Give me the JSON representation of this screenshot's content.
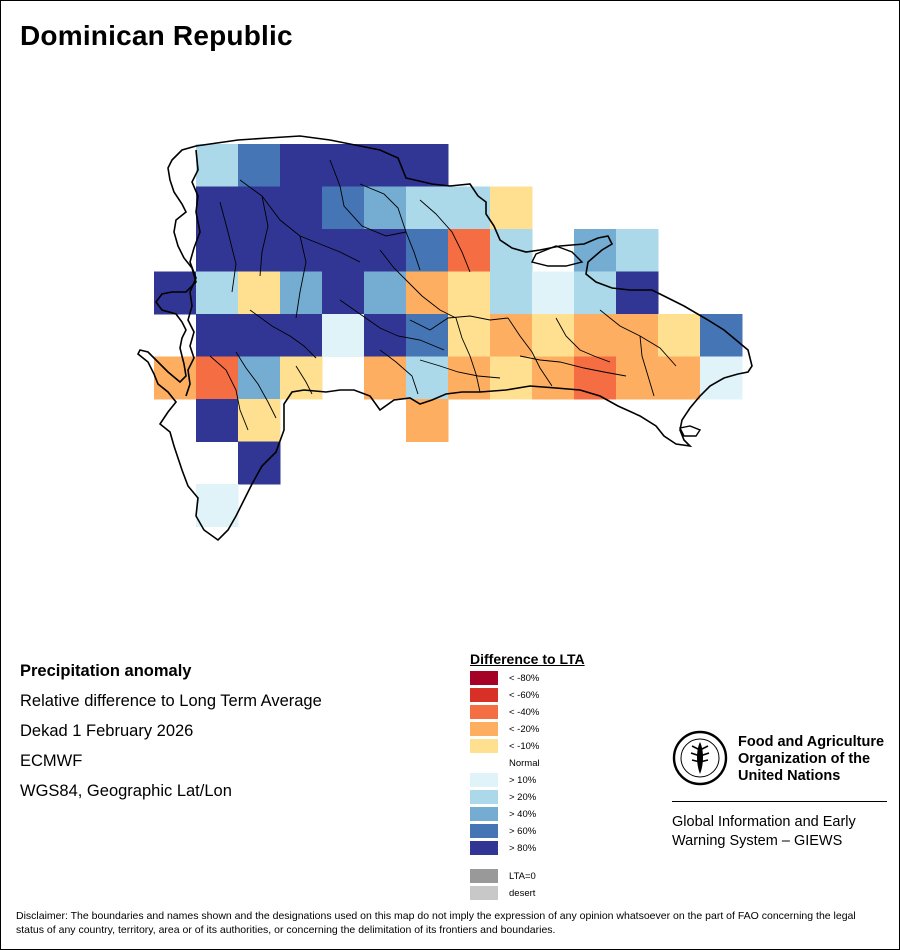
{
  "map": {
    "title": "Dominican Republic",
    "region": "Dominican Republic",
    "cell_value_codes": "1:> 80%, 2:> 60%, 3:> 40%, 4:> 20%, 5:> 10%, 6:< -10%, 7:< -20%, 8:< -40%",
    "grid": {
      "columns": [
        -72.0,
        -71.75,
        -71.5,
        -71.25,
        -71.0,
        -70.75,
        -70.5,
        -70.25,
        -70.0,
        -69.75,
        -69.5,
        -69.25,
        -69.0,
        -68.75
      ],
      "rows": [
        19.95,
        19.7,
        19.45,
        19.2,
        18.95,
        18.7,
        18.45,
        18.2,
        17.95,
        17.7
      ],
      "cells": [
        {
          "lat": 19.95,
          "lon": -71.75,
          "value": 4
        },
        {
          "lat": 19.95,
          "lon": -71.5,
          "value": 2
        },
        {
          "lat": 19.95,
          "lon": -71.25,
          "value": 1
        },
        {
          "lat": 19.95,
          "lon": -71.0,
          "value": 1
        },
        {
          "lat": 19.95,
          "lon": -70.75,
          "value": 1
        },
        {
          "lat": 19.95,
          "lon": -70.5,
          "value": 1
        },
        {
          "lat": 19.7,
          "lon": -71.75,
          "value": 1
        },
        {
          "lat": 19.7,
          "lon": -71.5,
          "value": 1
        },
        {
          "lat": 19.7,
          "lon": -71.25,
          "value": 1
        },
        {
          "lat": 19.7,
          "lon": -71.0,
          "value": 2
        },
        {
          "lat": 19.7,
          "lon": -70.75,
          "value": 3
        },
        {
          "lat": 19.7,
          "lon": -70.5,
          "value": 4
        },
        {
          "lat": 19.7,
          "lon": -70.25,
          "value": 4
        },
        {
          "lat": 19.7,
          "lon": -70.0,
          "value": 6
        },
        {
          "lat": 19.45,
          "lon": -71.75,
          "value": 1
        },
        {
          "lat": 19.45,
          "lon": -71.5,
          "value": 1
        },
        {
          "lat": 19.45,
          "lon": -71.25,
          "value": 1
        },
        {
          "lat": 19.45,
          "lon": -71.0,
          "value": 1
        },
        {
          "lat": 19.45,
          "lon": -70.75,
          "value": 1
        },
        {
          "lat": 19.45,
          "lon": -70.5,
          "value": 2
        },
        {
          "lat": 19.45,
          "lon": -70.25,
          "value": 8
        },
        {
          "lat": 19.45,
          "lon": -70.0,
          "value": 4
        },
        {
          "lat": 19.45,
          "lon": -69.5,
          "value": 3
        },
        {
          "lat": 19.45,
          "lon": -69.25,
          "value": 4
        },
        {
          "lat": 19.2,
          "lon": -72.0,
          "value": 1
        },
        {
          "lat": 19.2,
          "lon": -71.75,
          "value": 4
        },
        {
          "lat": 19.2,
          "lon": -71.5,
          "value": 6
        },
        {
          "lat": 19.2,
          "lon": -71.25,
          "value": 3
        },
        {
          "lat": 19.2,
          "lon": -71.0,
          "value": 1
        },
        {
          "lat": 19.2,
          "lon": -70.75,
          "value": 3
        },
        {
          "lat": 19.2,
          "lon": -70.5,
          "value": 7
        },
        {
          "lat": 19.2,
          "lon": -70.25,
          "value": 6
        },
        {
          "lat": 19.2,
          "lon": -70.0,
          "value": 4
        },
        {
          "lat": 19.2,
          "lon": -69.75,
          "value": 5
        },
        {
          "lat": 19.2,
          "lon": -69.5,
          "value": 4
        },
        {
          "lat": 19.2,
          "lon": -69.25,
          "value": 1
        },
        {
          "lat": 18.95,
          "lon": -71.75,
          "value": 1
        },
        {
          "lat": 18.95,
          "lon": -71.5,
          "value": 1
        },
        {
          "lat": 18.95,
          "lon": -71.25,
          "value": 1
        },
        {
          "lat": 18.95,
          "lon": -71.0,
          "value": 5
        },
        {
          "lat": 18.95,
          "lon": -70.75,
          "value": 1
        },
        {
          "lat": 18.95,
          "lon": -70.5,
          "value": 2
        },
        {
          "lat": 18.95,
          "lon": -70.25,
          "value": 6
        },
        {
          "lat": 18.95,
          "lon": -70.0,
          "value": 7
        },
        {
          "lat": 18.95,
          "lon": -69.75,
          "value": 6
        },
        {
          "lat": 18.95,
          "lon": -69.5,
          "value": 7
        },
        {
          "lat": 18.95,
          "lon": -69.25,
          "value": 7
        },
        {
          "lat": 18.95,
          "lon": -69.0,
          "value": 6
        },
        {
          "lat": 18.95,
          "lon": -68.75,
          "value": 2
        },
        {
          "lat": 18.7,
          "lon": -72.0,
          "value": 7
        },
        {
          "lat": 18.7,
          "lon": -71.75,
          "value": 8
        },
        {
          "lat": 18.7,
          "lon": -71.5,
          "value": 3
        },
        {
          "lat": 18.7,
          "lon": -71.25,
          "value": 6
        },
        {
          "lat": 18.7,
          "lon": -70.75,
          "value": 7
        },
        {
          "lat": 18.7,
          "lon": -70.5,
          "value": 4
        },
        {
          "lat": 18.7,
          "lon": -70.25,
          "value": 7
        },
        {
          "lat": 18.7,
          "lon": -70.0,
          "value": 6
        },
        {
          "lat": 18.7,
          "lon": -69.75,
          "value": 7
        },
        {
          "lat": 18.7,
          "lon": -69.5,
          "value": 8
        },
        {
          "lat": 18.7,
          "lon": -69.25,
          "value": 7
        },
        {
          "lat": 18.7,
          "lon": -69.0,
          "value": 7
        },
        {
          "lat": 18.7,
          "lon": -68.75,
          "value": 5
        },
        {
          "lat": 18.45,
          "lon": -71.75,
          "value": 1
        },
        {
          "lat": 18.45,
          "lon": -71.5,
          "value": 6
        },
        {
          "lat": 18.45,
          "lon": -70.5,
          "value": 7
        },
        {
          "lat": 18.2,
          "lon": -71.5,
          "value": 1
        },
        {
          "lat": 17.95,
          "lon": -71.75,
          "value": 5
        }
      ]
    }
  },
  "info": {
    "heading": "Precipitation anomaly",
    "line1": "Relative difference to Long Term Average",
    "line2": "Dekad 1 February 2026",
    "line3": "ECMWF",
    "line4": "WGS84, Geographic Lat/Lon"
  },
  "legend": {
    "title": "Difference to LTA",
    "items": [
      {
        "label": "< -80%",
        "color": "#a50026"
      },
      {
        "label": "< -60%",
        "color": "#d73027"
      },
      {
        "label": "< -40%",
        "color": "#f46d43"
      },
      {
        "label": "< -20%",
        "color": "#fdae61"
      },
      {
        "label": "< -10%",
        "color": "#fee090"
      },
      {
        "label": "Normal",
        "color": "#ffffff"
      },
      {
        "label": "> 10%",
        "color": "#e0f3f8"
      },
      {
        "label": "> 20%",
        "color": "#abd9e9"
      },
      {
        "label": "> 40%",
        "color": "#74add1"
      },
      {
        "label": "> 60%",
        "color": "#4575b4"
      },
      {
        "label": "> 80%",
        "color": "#313695"
      }
    ],
    "extra": [
      {
        "label": "LTA=0",
        "color": "#999999"
      },
      {
        "label": "desert",
        "color": "#c8c8c8"
      }
    ]
  },
  "fao": {
    "name_line1": "Food and Agriculture",
    "name_line2": "Organization of the",
    "name_line3": "United Nations",
    "giews_line1": "Global Information and Early",
    "giews_line2": "Warning System – GIEWS"
  },
  "disclaimer": "Disclaimer: The boundaries and names shown and the designations used on this map do not imply the expression of any opinion whatsoever on the part of FAO concerning the legal status of any country, territory, area or of its authorities, or concerning the delimitation of its frontiers and boundaries."
}
